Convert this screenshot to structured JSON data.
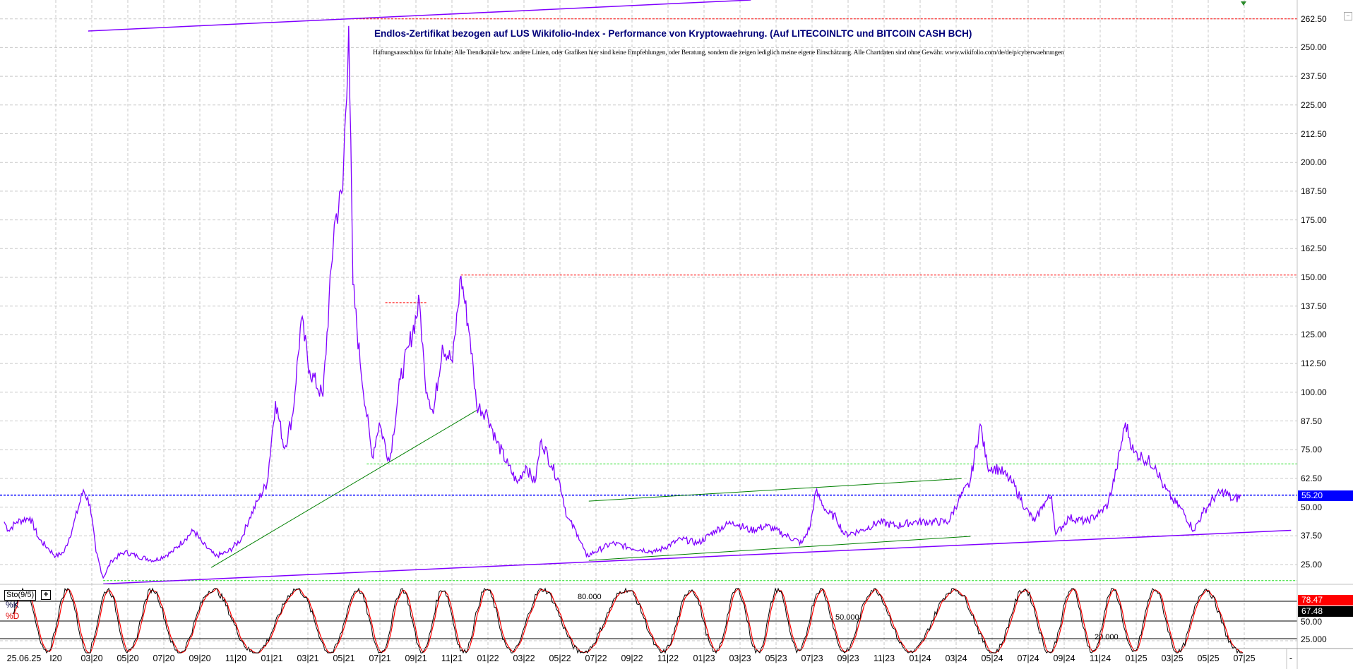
{
  "header": {
    "title": "Endlos-Zertifikat bezogen auf LUS Wikifolio-Index - Performance von Kryptowaehrung. (Auf LITECOINLTC und BITCOIN CASH BCH)",
    "disclaimer": "Haftungsausschluss für Inhalte: Alle Trendkanäle bzw. andere Linien, oder Grafiken hier sind keine Empfehlungen, oder Beratung, sondern die zeigen lediglich meine eigene Einschätzung. Alle Chartdaten sind ohne Gewähr.  www.wikifolio.com/de/de/p/cyberwaehrungen"
  },
  "colors": {
    "price": "#8000ff",
    "trend_green": "#008000",
    "resistance_red": "#ff0000",
    "support_green": "#00e000",
    "last_price_blue": "#0000ff",
    "stoch_k": "#000000",
    "stoch_d": "#ff0000",
    "grid": "#c0c0c0"
  },
  "chart_data": [
    {
      "type": "line",
      "title": "",
      "ylim": [
        18,
        270
      ],
      "y_ticks": [
        "262.50",
        "250.00",
        "237.50",
        "225.00",
        "212.50",
        "200.00",
        "187.50",
        "175.00",
        "162.50",
        "150.00",
        "137.50",
        "125.00",
        "112.50",
        "100.00",
        "87.50",
        "75.00",
        "62.50",
        "50.00",
        "37.50",
        "25.00"
      ],
      "grid": true,
      "last_price": "55.20",
      "series": [
        {
          "points": [
            [
              "2019-10-05",
              43.6
            ],
            [
              "2019-10-12",
              39.9
            ],
            [
              "2019-10-26",
              43.6
            ],
            [
              "2019-11-18",
              45.5
            ],
            [
              "2019-12-03",
              36.1
            ],
            [
              "2019-12-17",
              32.4
            ],
            [
              "2020-01-01",
              28.6
            ],
            [
              "2020-01-15",
              30.5
            ],
            [
              "2020-01-30",
              41.8
            ],
            [
              "2020-02-17",
              57.5
            ],
            [
              "2020-02-28",
              51.2
            ],
            [
              "2020-03-08",
              30.5
            ],
            [
              "2020-03-20",
              19.2
            ],
            [
              "2020-04-04",
              26.8
            ],
            [
              "2020-04-26",
              30.5
            ],
            [
              "2020-05-17",
              28.6
            ],
            [
              "2020-06-16",
              26.8
            ],
            [
              "2020-07-15",
              30.5
            ],
            [
              "2020-08-06",
              36.1
            ],
            [
              "2020-08-21",
              39.9
            ],
            [
              "2020-09-05",
              34.3
            ],
            [
              "2020-09-27",
              28.6
            ],
            [
              "2020-10-18",
              30.5
            ],
            [
              "2020-11-10",
              36.1
            ],
            [
              "2020-11-24",
              45.5
            ],
            [
              "2020-12-08",
              53.0
            ],
            [
              "2020-12-23",
              60.5
            ],
            [
              "2021-01-07",
              96.2
            ],
            [
              "2021-01-22",
              75.5
            ],
            [
              "2021-02-06",
              90.6
            ],
            [
              "2021-02-20",
              131.8
            ],
            [
              "2021-03-04",
              109.3
            ],
            [
              "2021-03-26",
              98.1
            ],
            [
              "2021-04-15",
              173.1
            ],
            [
              "2021-04-29",
              188.1
            ],
            [
              "2021-05-09",
              259.4
            ],
            [
              "2021-05-16",
              146.8
            ],
            [
              "2021-05-28",
              113.1
            ],
            [
              "2021-06-18",
              71.8
            ],
            [
              "2021-06-30",
              86.8
            ],
            [
              "2021-07-17",
              69.9
            ],
            [
              "2021-08-05",
              105.6
            ],
            [
              "2021-08-20",
              120.6
            ],
            [
              "2021-09-07",
              139.3
            ],
            [
              "2021-09-16",
              105.6
            ],
            [
              "2021-09-30",
              90.6
            ],
            [
              "2021-10-15",
              120.6
            ],
            [
              "2021-11-02",
              113.1
            ],
            [
              "2021-11-16",
              150.6
            ],
            [
              "2021-12-01",
              124.3
            ],
            [
              "2021-12-12",
              94.3
            ],
            [
              "2021-12-30",
              90.6
            ],
            [
              "2022-01-14",
              79.3
            ],
            [
              "2022-02-05",
              68.0
            ],
            [
              "2022-02-20",
              60.5
            ],
            [
              "2022-03-04",
              68.0
            ],
            [
              "2022-03-19",
              60.5
            ],
            [
              "2022-03-30",
              79.3
            ],
            [
              "2022-04-17",
              68.0
            ],
            [
              "2022-05-01",
              60.5
            ],
            [
              "2022-05-13",
              45.5
            ],
            [
              "2022-06-01",
              38.0
            ],
            [
              "2022-06-15",
              28.6
            ],
            [
              "2022-06-29",
              30.5
            ],
            [
              "2022-07-28",
              34.3
            ],
            [
              "2022-08-27",
              32.4
            ],
            [
              "2022-10-10",
              30.5
            ],
            [
              "2022-11-23",
              36.1
            ],
            [
              "2022-12-22",
              34.3
            ],
            [
              "2023-01-20",
              39.9
            ],
            [
              "2023-02-19",
              43.6
            ],
            [
              "2023-03-18",
              39.9
            ],
            [
              "2023-04-16",
              41.8
            ],
            [
              "2023-05-15",
              38.0
            ],
            [
              "2023-06-14",
              34.3
            ],
            [
              "2023-06-28",
              41.8
            ],
            [
              "2023-07-07",
              56.8
            ],
            [
              "2023-07-27",
              47.4
            ],
            [
              "2023-08-11",
              45.5
            ],
            [
              "2023-08-25",
              38.0
            ],
            [
              "2023-09-24",
              39.9
            ],
            [
              "2023-10-23",
              43.6
            ],
            [
              "2023-11-22",
              41.8
            ],
            [
              "2023-12-20",
              43.6
            ],
            [
              "2024-01-19",
              43.6
            ],
            [
              "2024-02-18",
              43.6
            ],
            [
              "2024-03-05",
              53.0
            ],
            [
              "2024-03-24",
              60.5
            ],
            [
              "2024-04-11",
              86.1
            ],
            [
              "2024-04-23",
              68.0
            ],
            [
              "2024-05-14",
              66.2
            ],
            [
              "2024-06-05",
              60.5
            ],
            [
              "2024-06-27",
              49.3
            ],
            [
              "2024-07-12",
              43.6
            ],
            [
              "2024-07-26",
              51.2
            ],
            [
              "2024-08-10",
              54.9
            ],
            [
              "2024-08-17",
              38.0
            ],
            [
              "2024-09-09",
              45.5
            ],
            [
              "2024-10-08",
              43.6
            ],
            [
              "2024-10-30",
              47.4
            ],
            [
              "2024-11-14",
              51.2
            ],
            [
              "2024-11-28",
              66.2
            ],
            [
              "2024-12-13",
              86.8
            ],
            [
              "2024-12-27",
              73.7
            ],
            [
              "2025-01-11",
              71.8
            ],
            [
              "2025-02-03",
              68.0
            ],
            [
              "2025-02-17",
              58.7
            ],
            [
              "2025-03-02",
              53.0
            ],
            [
              "2025-03-16",
              49.3
            ],
            [
              "2025-04-07",
              39.9
            ],
            [
              "2025-04-22",
              47.4
            ],
            [
              "2025-05-13",
              54.9
            ],
            [
              "2025-05-28",
              56.8
            ],
            [
              "2025-06-12",
              53.0
            ],
            [
              "2025-06-26",
              54.9
            ]
          ]
        }
      ],
      "trendlines": [
        {
          "kind": "purple",
          "from": [
            "2020-02-25",
            257.2
          ],
          "to": [
            "2023-03-19",
            270.7
          ]
        },
        {
          "kind": "purple",
          "from": [
            "2020-03-20",
            16.6
          ],
          "to": [
            "2025-09-19",
            39.9
          ]
        },
        {
          "kind": "green",
          "from": [
            "2020-09-20",
            23.7
          ],
          "to": [
            "2021-12-12",
            92.1
          ]
        },
        {
          "kind": "green",
          "from": [
            "2022-06-19",
            52.6
          ],
          "to": [
            "2024-03-10",
            62.4
          ]
        },
        {
          "kind": "green",
          "from": [
            "2022-06-19",
            26.8
          ],
          "to": [
            "2024-03-25",
            37.3
          ]
        }
      ],
      "horizontal_levels": [
        {
          "kind": "red",
          "value": 262.5,
          "from": "2021-05-09"
        },
        {
          "kind": "red",
          "value": 139.0,
          "from": "2021-07-10",
          "to": "2021-09-20"
        },
        {
          "kind": "red",
          "value": 151.0,
          "from": "2021-11-16"
        },
        {
          "kind": "lime",
          "value": 68.8,
          "from": "2021-06-09"
        },
        {
          "kind": "lime",
          "value": 18.0,
          "from": "2020-03-20"
        },
        {
          "kind": "blue",
          "value": 55.2
        }
      ],
      "x_ticks": [
        {
          "date": "2020-01",
          "label": "I20"
        },
        {
          "date": "2020-03",
          "label": "03|20"
        },
        {
          "date": "2020-05",
          "label": "05|20"
        },
        {
          "date": "2020-07",
          "label": "07|20"
        },
        {
          "date": "2020-09",
          "label": "09|20"
        },
        {
          "date": "2020-11",
          "label": "11|20"
        },
        {
          "date": "2021-01",
          "label": "01|21"
        },
        {
          "date": "2021-03",
          "label": "03|21"
        },
        {
          "date": "2021-05",
          "label": "05|21"
        },
        {
          "date": "2021-07",
          "label": "07|21"
        },
        {
          "date": "2021-09",
          "label": "09|21"
        },
        {
          "date": "2021-11",
          "label": "11|21"
        },
        {
          "date": "2022-01",
          "label": "01|22"
        },
        {
          "date": "2022-03",
          "label": "03|22"
        },
        {
          "date": "2022-05",
          "label": "05|22"
        },
        {
          "date": "2022-07",
          "label": "07|22"
        },
        {
          "date": "2022-09",
          "label": "09|22"
        },
        {
          "date": "2022-11",
          "label": "11|22"
        },
        {
          "date": "2023-01",
          "label": "01|23"
        },
        {
          "date": "2023-03",
          "label": "03|23"
        },
        {
          "date": "2023-05",
          "label": "05|23"
        },
        {
          "date": "2023-07",
          "label": "07|23"
        },
        {
          "date": "2023-09",
          "label": "09|23"
        },
        {
          "date": "2023-11",
          "label": "11|23"
        },
        {
          "date": "2024-01",
          "label": "01|24"
        },
        {
          "date": "2024-03",
          "label": "03|24"
        },
        {
          "date": "2024-05",
          "label": "05|24"
        },
        {
          "date": "2024-07",
          "label": "07|24"
        },
        {
          "date": "2024-09",
          "label": "09|24"
        },
        {
          "date": "2024-11",
          "label": "11|24"
        },
        {
          "date": "2025-01",
          "label": "01|25"
        },
        {
          "date": "2025-03",
          "label": "03|25"
        },
        {
          "date": "2025-05",
          "label": "05|25"
        },
        {
          "date": "2025-07",
          "label": "07|25"
        }
      ],
      "current_date_label": "25.06.25",
      "axis_end_label": "-"
    },
    {
      "type": "line",
      "indicator": "Sto(9/5)",
      "series": [
        {
          "name": "%K",
          "last": "67.48"
        },
        {
          "name": "%D",
          "last": "78.47"
        }
      ],
      "levels": [
        "80.000",
        "50.000",
        "20.000"
      ],
      "y_ticks": [
        "50.00",
        "25.000"
      ],
      "ylim": [
        0,
        100
      ]
    }
  ]
}
